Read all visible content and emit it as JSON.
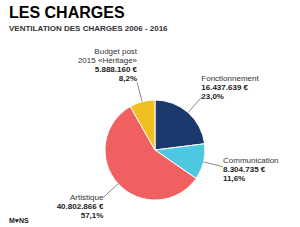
{
  "chart_data": {
    "type": "pie",
    "title": "LES CHARGES",
    "subtitle": "VENTILATION DES CHARGES 2006 - 2016",
    "categories": [
      "Fonctionnement",
      "Communication",
      "Artistique",
      "Budget post\n2015 «Héritage»"
    ],
    "values": [
      16437639,
      8304735,
      40802866,
      5888160
    ],
    "value_labels": [
      "16.437.639 €",
      "8.304.735 €",
      "40.802.866 €",
      "5.888.160 €"
    ],
    "pct": [
      23.0,
      11.6,
      57.1,
      8.2
    ],
    "pct_labels": [
      "23,0%",
      "11,6%",
      "57,1%",
      "8,2%"
    ],
    "colors": [
      "#1a3a6e",
      "#4ec8e0",
      "#f06060",
      "#f0c020"
    ],
    "data_labels": true,
    "annotations": [
      "M♥NS"
    ]
  }
}
